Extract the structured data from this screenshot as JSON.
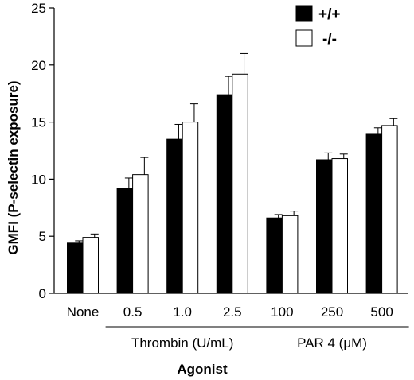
{
  "chart_data": {
    "type": "bar",
    "ylabel": "GMFI (P-selectin exposure)",
    "xlabel": "Agonist",
    "ylim": [
      0,
      25
    ],
    "yticks": [
      0,
      5,
      10,
      15,
      20,
      25
    ],
    "categories": [
      "None",
      "0.5",
      "1.0",
      "2.5",
      "100",
      "250",
      "500"
    ],
    "groups": [
      {
        "label": "Thrombin (U/mL)",
        "categories": [
          "0.5",
          "1.0",
          "2.5"
        ]
      },
      {
        "label": "PAR 4 (μM)",
        "categories": [
          "100",
          "250",
          "500"
        ]
      }
    ],
    "series": [
      {
        "name": "+/+",
        "color": "#000000",
        "values": [
          4.4,
          9.2,
          13.5,
          17.4,
          6.6,
          11.7,
          14.0
        ],
        "errors": [
          0.2,
          0.9,
          1.3,
          1.6,
          0.3,
          0.6,
          0.5
        ]
      },
      {
        "name": "-/-",
        "color": "#ffffff",
        "values": [
          4.9,
          10.4,
          15.0,
          19.2,
          6.8,
          11.8,
          14.7
        ],
        "errors": [
          0.3,
          1.5,
          1.6,
          1.8,
          0.4,
          0.4,
          0.6
        ]
      }
    ],
    "legend_position": "top-right"
  }
}
